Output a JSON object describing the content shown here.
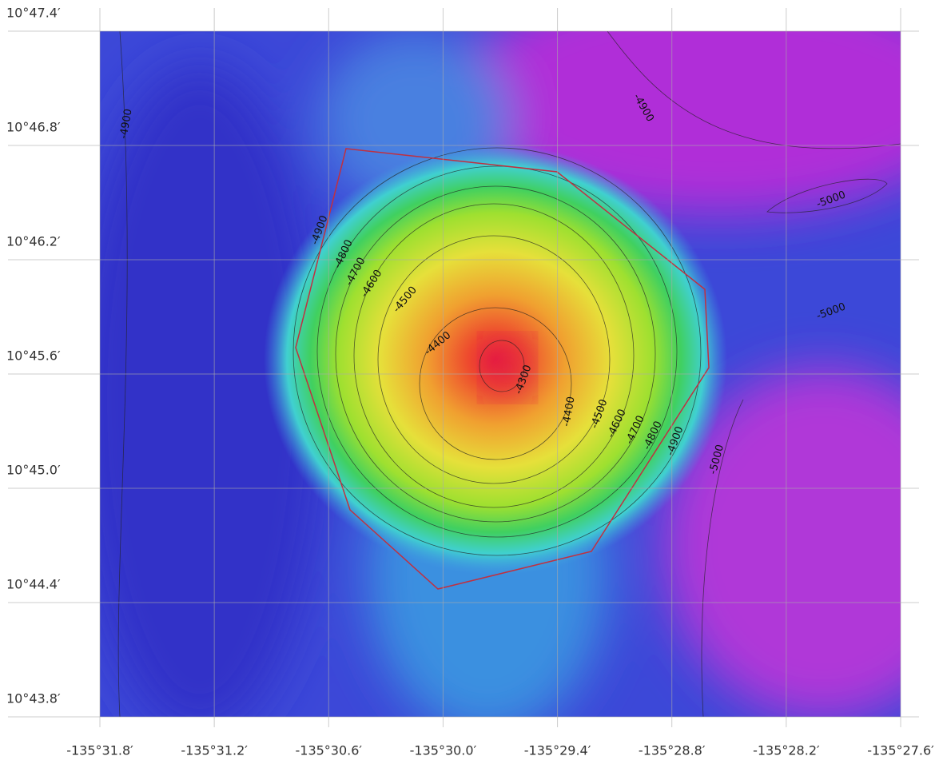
{
  "map": {
    "lat_ticks": [
      "10°47.4′",
      "10°46.8′",
      "10°46.2′",
      "10°45.6′",
      "10°45.0′",
      "10°44.4′",
      "10°43.8′"
    ],
    "lon_ticks": [
      "-135°31.8′",
      "-135°31.2′",
      "-135°30.6′",
      "-135°30.0′",
      "-135°29.4′",
      "-135°28.8′",
      "-135°28.2′",
      "-135°27.6′"
    ],
    "contour_labels": [
      -4900,
      -4900,
      -5000,
      -5000,
      -4900,
      -4800,
      -4700,
      -4600,
      -4500,
      -4400,
      -4300,
      -4400,
      -4500,
      -4600,
      -4700,
      -4800,
      -4900,
      -5000
    ]
  }
}
